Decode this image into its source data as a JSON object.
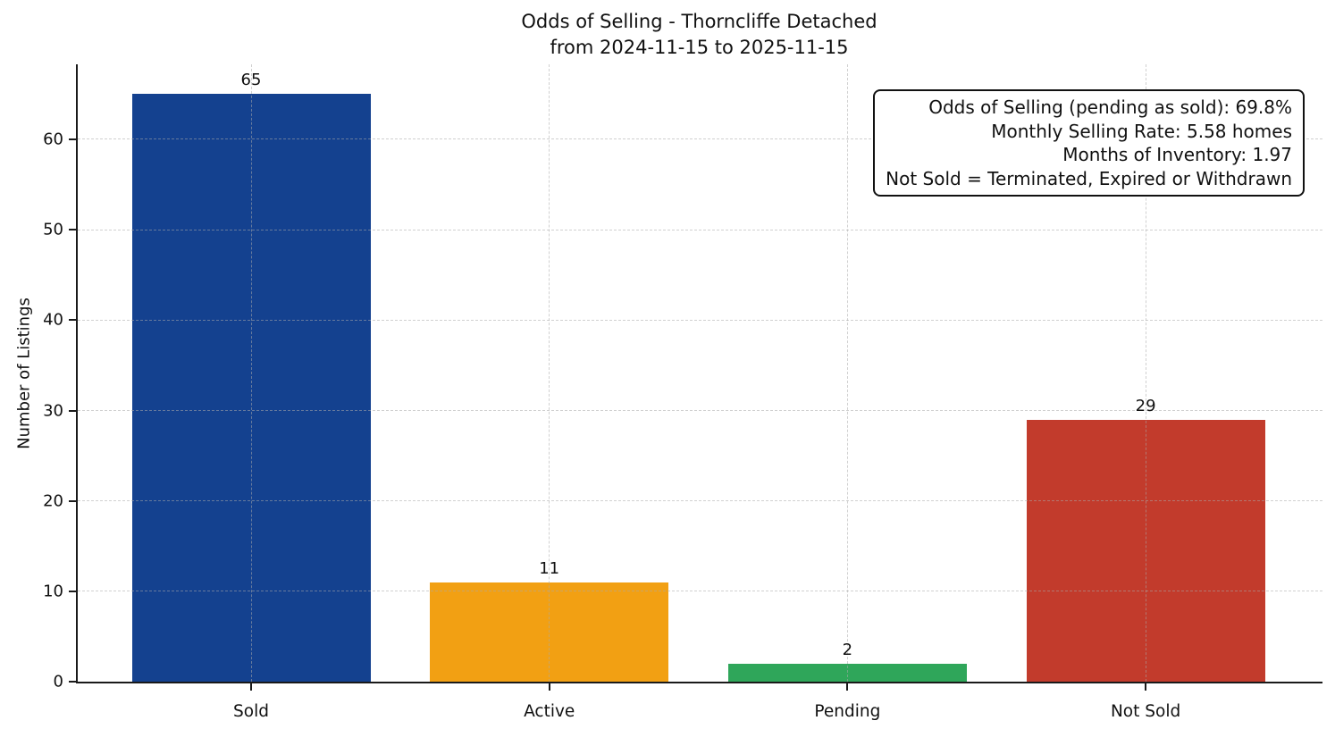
{
  "chart_data": {
    "type": "bar",
    "title": "Odds of Selling - Thorncliffe Detached\nfrom 2024-11-15 to 2025-11-15",
    "title_line1": "Odds of Selling - Thorncliffe Detached",
    "title_line2": "from 2024-11-15 to 2025-11-15",
    "categories": [
      "Sold",
      "Active",
      "Pending",
      "Not Sold"
    ],
    "values": [
      65,
      11,
      2,
      29
    ],
    "bar_colors": [
      "#14418F",
      "#F2A013",
      "#2FA65A",
      "#C23B2C"
    ],
    "xlabel": "",
    "ylabel": "Number of Listings",
    "ylim": [
      0,
      68.3
    ],
    "yticks": [
      0,
      10,
      20,
      30,
      40,
      50,
      60
    ],
    "grid": "dashed-both-axes",
    "legend": "none",
    "annotation_box": {
      "position": "top-right",
      "lines": [
        "Odds of Selling (pending as sold): 69.8%",
        "Monthly Selling Rate: 5.58 homes",
        "Months of Inventory: 1.97",
        "Not Sold = Terminated, Expired or Withdrawn"
      ]
    }
  }
}
